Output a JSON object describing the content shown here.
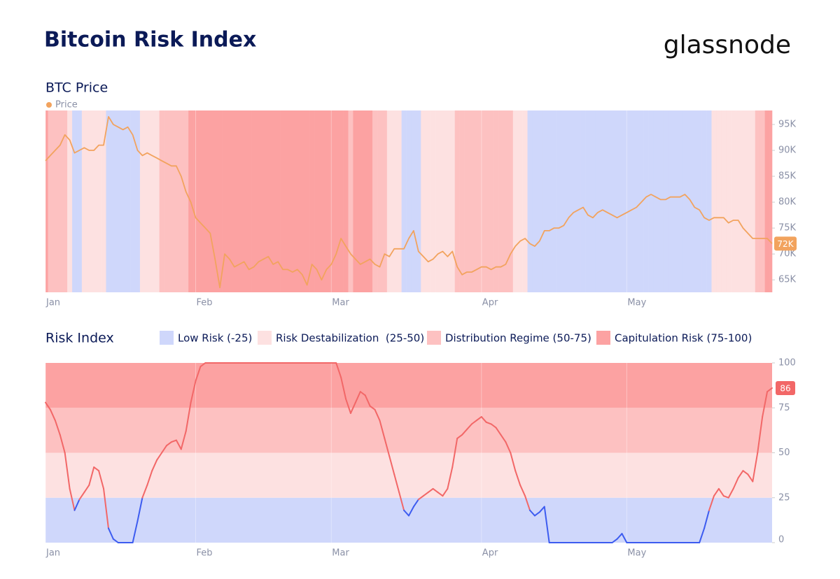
{
  "title": "Bitcoin Risk Index",
  "brand": "glassnode",
  "chart_data": [
    {
      "type": "line",
      "title": "BTC Price",
      "categories": [
        "Jan",
        null,
        null,
        null,
        null,
        null,
        null,
        null,
        null,
        null,
        null,
        null,
        null,
        null,
        null,
        null,
        null,
        null,
        null,
        null,
        null,
        null,
        null,
        null,
        null,
        null,
        null,
        null,
        null,
        null,
        null,
        "Feb",
        null,
        null,
        null,
        null,
        null,
        null,
        null,
        null,
        null,
        null,
        null,
        null,
        null,
        null,
        null,
        null,
        null,
        null,
        null,
        null,
        null,
        null,
        null,
        null,
        null,
        null,
        null,
        "Mar",
        null,
        null,
        null,
        null,
        null,
        null,
        null,
        null,
        null,
        null,
        null,
        null,
        null,
        null,
        null,
        null,
        null,
        null,
        null,
        null,
        null,
        null,
        null,
        null,
        null,
        null,
        null,
        null,
        null,
        null,
        "Apr",
        null,
        null,
        null,
        null,
        null,
        null,
        null,
        null,
        null,
        null,
        null,
        null,
        null,
        null,
        null,
        null,
        null,
        null,
        null,
        null,
        null,
        null,
        null,
        null,
        null,
        null,
        null,
        null,
        null,
        "May",
        null,
        null,
        null,
        null,
        null,
        null,
        null,
        null,
        null,
        null,
        null,
        null,
        null,
        null,
        null,
        null,
        null,
        null,
        null,
        null,
        null,
        null,
        null,
        null,
        null,
        null,
        null,
        null,
        null,
        null
      ],
      "series": [
        {
          "name": "Price",
          "color": "#f2a35e",
          "values": [
            88000,
            89000,
            90000,
            91000,
            93000,
            92000,
            89500,
            90000,
            90500,
            90000,
            90000,
            91000,
            91000,
            96500,
            95000,
            94500,
            94000,
            94500,
            93000,
            90000,
            89000,
            89500,
            89000,
            88500,
            88000,
            87500,
            87000,
            87000,
            85000,
            82000,
            80000,
            77000,
            76000,
            75000,
            74000,
            69000,
            63500,
            70000,
            69000,
            67500,
            68000,
            68500,
            67000,
            67500,
            68500,
            69000,
            69500,
            68000,
            68500,
            67000,
            67000,
            66500,
            67000,
            66000,
            64000,
            68000,
            67000,
            65000,
            67000,
            68000,
            70000,
            73000,
            71500,
            70000,
            69000,
            68000,
            68500,
            69000,
            68000,
            67500,
            70000,
            69500,
            71000,
            71000,
            71000,
            73000,
            74500,
            70500,
            69500,
            68500,
            69000,
            70000,
            70500,
            69500,
            70500,
            67500,
            66000,
            66500,
            66500,
            67000,
            67500,
            67500,
            67000,
            67500,
            67500,
            68000,
            70000,
            71500,
            72500,
            73000,
            72000,
            71500,
            72500,
            74500,
            74500,
            75000,
            75000,
            75500,
            77000,
            78000,
            78500,
            79000,
            77500,
            77000,
            78000,
            78500,
            78000,
            77500,
            77000,
            77500,
            78000,
            78500,
            79000,
            80000,
            81000,
            81500,
            81000,
            80500,
            80500,
            81000,
            81000,
            81000,
            81500,
            80500,
            79000,
            78500,
            77000,
            76500,
            77000,
            77000,
            77000,
            76000,
            76500,
            76500,
            75000,
            74000,
            73000,
            73000,
            73000,
            73000,
            72000
          ]
        }
      ],
      "ylim": [
        62600,
        97700
      ],
      "yticks": [
        {
          "value": 65000,
          "label": "65K"
        },
        {
          "value": 70000,
          "label": "70K"
        },
        {
          "value": 75000,
          "label": "75K"
        },
        {
          "value": 80000,
          "label": "80K"
        },
        {
          "value": 85000,
          "label": "85K"
        },
        {
          "value": 90000,
          "label": "90K"
        },
        {
          "value": 95000,
          "label": "95K"
        }
      ],
      "current": {
        "value": 72000,
        "label": "72K"
      }
    },
    {
      "type": "line",
      "title": "Risk Index",
      "categories": [
        "Jan",
        null,
        null,
        null,
        null,
        null,
        null,
        null,
        null,
        null,
        null,
        null,
        null,
        null,
        null,
        null,
        null,
        null,
        null,
        null,
        null,
        null,
        null,
        null,
        null,
        null,
        null,
        null,
        null,
        null,
        null,
        "Feb",
        null,
        null,
        null,
        null,
        null,
        null,
        null,
        null,
        null,
        null,
        null,
        null,
        null,
        null,
        null,
        null,
        null,
        null,
        null,
        null,
        null,
        null,
        null,
        null,
        null,
        null,
        null,
        "Mar",
        null,
        null,
        null,
        null,
        null,
        null,
        null,
        null,
        null,
        null,
        null,
        null,
        null,
        null,
        null,
        null,
        null,
        null,
        null,
        null,
        null,
        null,
        null,
        null,
        null,
        null,
        null,
        null,
        null,
        null,
        "Apr",
        null,
        null,
        null,
        null,
        null,
        null,
        null,
        null,
        null,
        null,
        null,
        null,
        null,
        null,
        null,
        null,
        null,
        null,
        null,
        null,
        null,
        null,
        null,
        null,
        null,
        null,
        null,
        null,
        null,
        "May",
        null,
        null,
        null,
        null,
        null,
        null,
        null,
        null,
        null,
        null,
        null,
        null,
        null,
        null,
        null,
        null,
        null,
        null,
        null,
        null,
        null,
        null,
        null,
        null,
        null,
        null,
        null,
        null,
        null,
        null
      ],
      "series": [
        {
          "color": "#f26767",
          "low_color": "#3d5cf0",
          "values": [
            78,
            74,
            68,
            60,
            50,
            30,
            18,
            24,
            28,
            32,
            42,
            40,
            30,
            8,
            2,
            0,
            0,
            0,
            0,
            12,
            25,
            32,
            40,
            46,
            50,
            54,
            56,
            57,
            52,
            62,
            78,
            90,
            98,
            100,
            100,
            100,
            100,
            100,
            100,
            100,
            100,
            100,
            100,
            100,
            100,
            100,
            100,
            100,
            100,
            100,
            100,
            100,
            100,
            100,
            100,
            100,
            100,
            100,
            100,
            100,
            100,
            92,
            80,
            72,
            78,
            84,
            82,
            76,
            74,
            68,
            58,
            48,
            38,
            28,
            18,
            15,
            20,
            24,
            26,
            28,
            30,
            28,
            26,
            30,
            42,
            58,
            60,
            63,
            66,
            68,
            70,
            67,
            66,
            64,
            60,
            56,
            50,
            40,
            32,
            26,
            18,
            15,
            17,
            20,
            0,
            0,
            0,
            0,
            0,
            0,
            0,
            0,
            0,
            0,
            0,
            0,
            0,
            0,
            2,
            5,
            0,
            0,
            0,
            0,
            0,
            0,
            0,
            0,
            0,
            0,
            0,
            0,
            0,
            0,
            0,
            0,
            8,
            18,
            26,
            30,
            26,
            25,
            30,
            36,
            40,
            38,
            34,
            50,
            70,
            84,
            86
          ]
        }
      ],
      "ylim": [
        0,
        100
      ],
      "yticks": [
        0,
        25,
        50,
        75,
        100
      ],
      "bands": [
        {
          "name": "Low Risk (-25)",
          "color": "#cfd7fb",
          "range": [
            0,
            25
          ]
        },
        {
          "name": "Risk Destabilization  (25-50)",
          "color": "#fde1e1",
          "range": [
            25,
            50
          ]
        },
        {
          "name": "Distribution Regime (50-75)",
          "color": "#fdc1c1",
          "range": [
            50,
            75
          ]
        },
        {
          "name": "Capitulation Risk (75-100)",
          "color": "#fca2a2",
          "range": [
            75,
            100
          ]
        }
      ],
      "current": 86
    }
  ]
}
